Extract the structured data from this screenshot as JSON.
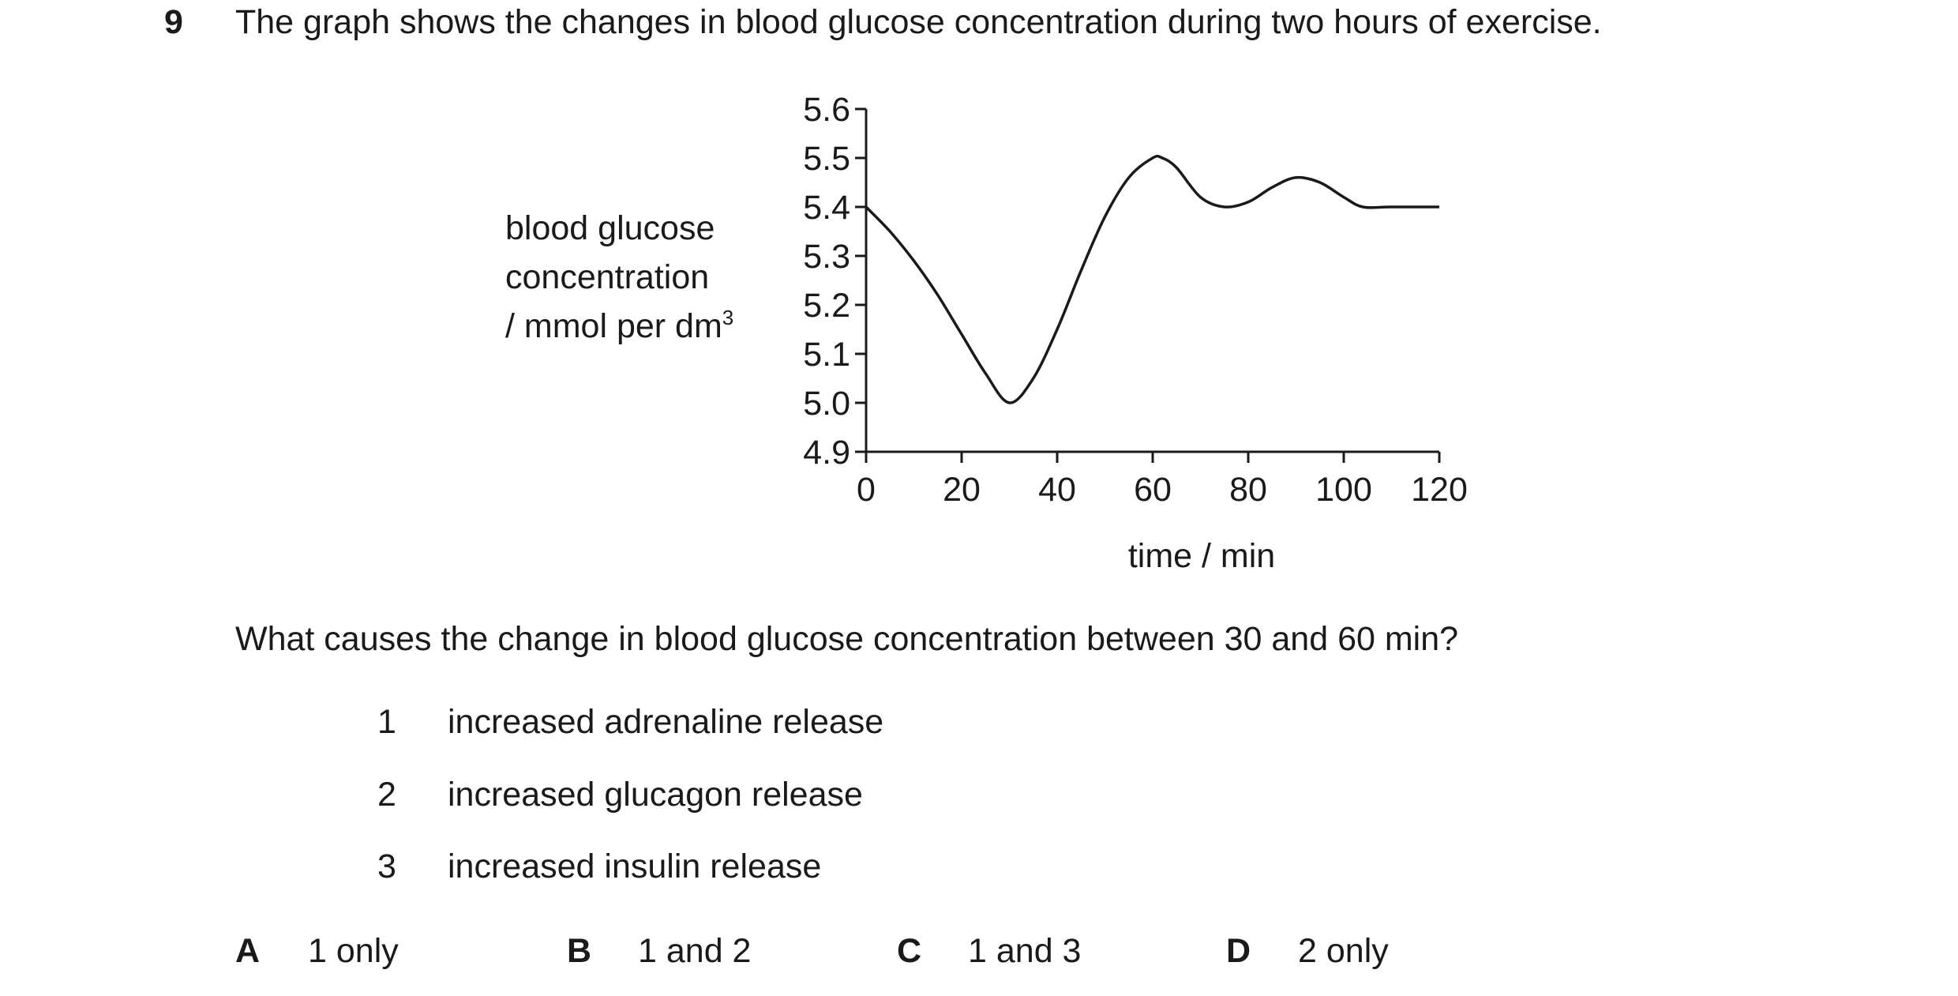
{
  "question": {
    "number": "9",
    "stem": "The graph shows the changes in blood glucose concentration during two hours of exercise.",
    "prompt": "What causes the change in blood glucose concentration between 30 and 60 min?",
    "statements": [
      {
        "num": "1",
        "text": "increased adrenaline release"
      },
      {
        "num": "2",
        "text": "increased glucagon release"
      },
      {
        "num": "3",
        "text": "increased insulin release"
      }
    ],
    "options": [
      {
        "letter": "A",
        "text": "1 only"
      },
      {
        "letter": "B",
        "text": "1 and 2"
      },
      {
        "letter": "C",
        "text": "1 and 3"
      },
      {
        "letter": "D",
        "text": "2 only"
      }
    ]
  },
  "chart_data": {
    "type": "line",
    "title": "",
    "xlabel": "time / min",
    "ylabel_lines": [
      "blood glucose",
      "concentration",
      "/ mmol per dm"
    ],
    "ylabel_superscript": "3",
    "xlim": [
      0,
      120
    ],
    "ylim": [
      4.9,
      5.6
    ],
    "x_ticks": [
      "0",
      "20",
      "40",
      "60",
      "80",
      "100",
      "120"
    ],
    "y_ticks": [
      "5.6",
      "5.5",
      "5.4",
      "5.3",
      "5.2",
      "5.1",
      "5.0",
      "4.9"
    ],
    "grid": false,
    "series": [
      {
        "x": [
          0,
          5,
          10,
          15,
          20,
          25,
          30,
          35,
          40,
          45,
          50,
          55,
          60,
          62,
          65,
          70,
          75,
          80,
          85,
          90,
          95,
          100,
          104,
          110,
          120
        ],
        "y": [
          5.4,
          5.35,
          5.29,
          5.22,
          5.14,
          5.06,
          5.0,
          5.05,
          5.15,
          5.27,
          5.38,
          5.46,
          5.5,
          5.5,
          5.48,
          5.42,
          5.4,
          5.41,
          5.44,
          5.46,
          5.45,
          5.42,
          5.4,
          5.4,
          5.4
        ]
      }
    ],
    "line_color": "#1a1a1a"
  }
}
